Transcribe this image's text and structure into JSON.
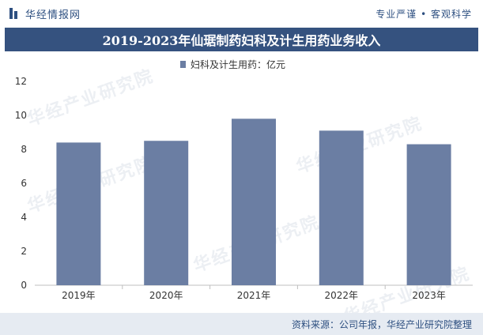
{
  "brand": {
    "logo_text": "华经情报网",
    "slogan": "专业严谨 • 客观科学"
  },
  "watermark_text": "华经产业研究院",
  "footer": {
    "source": "资料来源：公司年报，华经产业研究院整理"
  },
  "colors": {
    "brand": "#2d4f80",
    "title_bg": "#35527f",
    "bar": "#6b7ea3",
    "footer_bg": "#e6ebf2"
  },
  "chart_data": {
    "type": "bar",
    "title": "2019-2023年仙琚制药妇科及计生用药业务收入",
    "categories": [
      "2019年",
      "2020年",
      "2021年",
      "2022年",
      "2023年"
    ],
    "series": [
      {
        "name": "妇科及计生用药：亿元",
        "values": [
          8.4,
          8.5,
          9.8,
          9.1,
          8.3
        ]
      }
    ],
    "ylim": [
      0,
      12
    ],
    "yticks": [
      0,
      2,
      4,
      6,
      8,
      10,
      12
    ],
    "xlabel": "",
    "ylabel": "",
    "grid": false,
    "legend": "top-center"
  }
}
